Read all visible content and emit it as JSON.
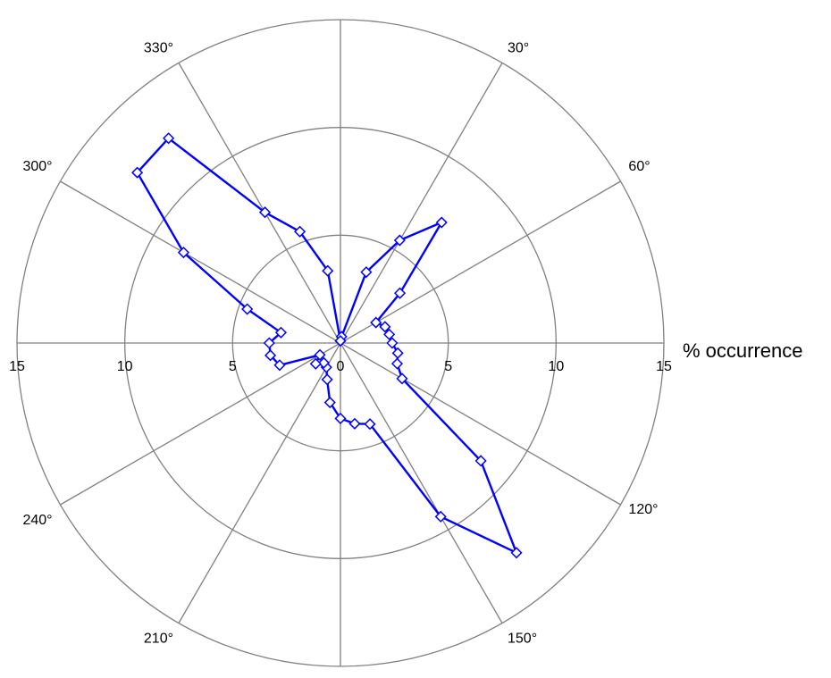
{
  "chart_data": {
    "type": "polar-line",
    "radial_axis": {
      "min": 0,
      "max": 15,
      "ticks": [
        0,
        5,
        10,
        15
      ],
      "tick_labels": [
        "0",
        "5",
        "10",
        "15"
      ],
      "unit_label": "% occurrence"
    },
    "angular_axis": {
      "direction": "clockwise",
      "zero_at": "top",
      "labeled_angles": [
        30,
        60,
        120,
        150,
        210,
        240,
        300,
        330
      ],
      "labels": [
        "30°",
        "60°",
        "120°",
        "150°",
        "210°",
        "240°",
        "300°",
        "330°"
      ],
      "spoke_step_deg": 30
    },
    "series": [
      {
        "color": "#0000ff",
        "marker": "diamond",
        "points": [
          {
            "angle": 0,
            "value": 0.1
          },
          {
            "angle": 10,
            "value": 0.3
          },
          {
            "angle": 20,
            "value": 3.5
          },
          {
            "angle": 30,
            "value": 5.5
          },
          {
            "angle": 40,
            "value": 7.3
          },
          {
            "angle": 50,
            "value": 3.6
          },
          {
            "angle": 60,
            "value": 1.9
          },
          {
            "angle": 70,
            "value": 2.2
          },
          {
            "angle": 80,
            "value": 2.3
          },
          {
            "angle": 90,
            "value": 2.4
          },
          {
            "angle": 100,
            "value": 2.7
          },
          {
            "angle": 110,
            "value": 2.8
          },
          {
            "angle": 120,
            "value": 3.3
          },
          {
            "angle": 130,
            "value": 8.5
          },
          {
            "angle": 140,
            "value": 12.7
          },
          {
            "angle": 150,
            "value": 9.3
          },
          {
            "angle": 160,
            "value": 4.0
          },
          {
            "angle": 170,
            "value": 3.8
          },
          {
            "angle": 180,
            "value": 3.5
          },
          {
            "angle": 190,
            "value": 2.8
          },
          {
            "angle": 200,
            "value": 1.8
          },
          {
            "angle": 210,
            "value": 1.3
          },
          {
            "angle": 220,
            "value": 1.2
          },
          {
            "angle": 230,
            "value": 1.5
          },
          {
            "angle": 240,
            "value": 1.1
          },
          {
            "angle": 250,
            "value": 3.0
          },
          {
            "angle": 260,
            "value": 3.3
          },
          {
            "angle": 270,
            "value": 3.3
          },
          {
            "angle": 280,
            "value": 2.8
          },
          {
            "angle": 290,
            "value": 4.6
          },
          {
            "angle": 300,
            "value": 8.4
          },
          {
            "angle": 310,
            "value": 12.3
          },
          {
            "angle": 320,
            "value": 12.4
          },
          {
            "angle": 330,
            "value": 7.0
          },
          {
            "angle": 340,
            "value": 5.5
          },
          {
            "angle": 350,
            "value": 3.4
          },
          {
            "angle": 360,
            "value": 0.1
          }
        ]
      }
    ],
    "grid": true
  }
}
